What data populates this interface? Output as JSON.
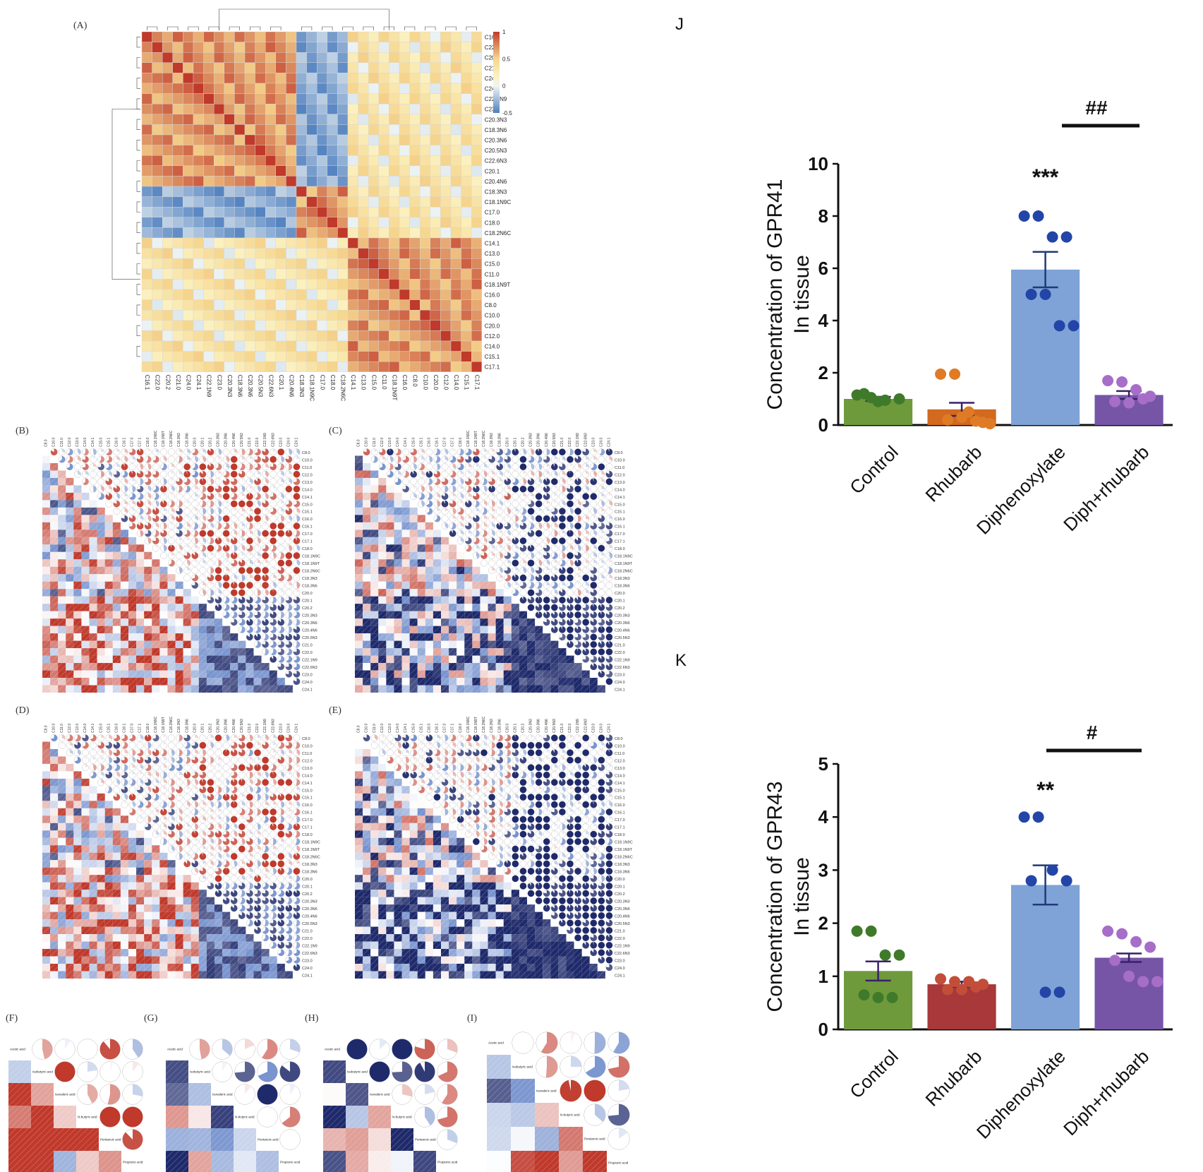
{
  "panel_labels": {
    "A": "(A)",
    "B": "(B)",
    "C": "(C)",
    "D": "(D)",
    "E": "(E)",
    "F": "(F)",
    "G": "(G)",
    "H": "(H)",
    "I": "(I)",
    "J": "J",
    "K": "K"
  },
  "colors": {
    "red": "#c0392b",
    "white": "#ffffff",
    "blue": "#3b63b8",
    "navy": "#1f2a6b",
    "control": "#6e9a3c",
    "rhubarb_j": "#d2691e",
    "rhubarb_k": "#a8383a",
    "diph": "#7fa3d6",
    "diphrhu": "#7655a6"
  },
  "chart_data": [
    {
      "type": "heatmap",
      "panel": "A",
      "row_labels": [
        "C16.1",
        "C22.0",
        "C20.2",
        "C21.0",
        "C24.0",
        "C24.1",
        "C22.1N9",
        "C23.0",
        "C20.3N3",
        "C18.3N6",
        "C20.3N6",
        "C20.5N3",
        "C22.6N3",
        "C20.1",
        "C20.4N6",
        "C18.3N3",
        "C18.1N9C",
        "C17.0",
        "C18.0",
        "C18.2N6C",
        "C14.1",
        "C13.0",
        "C15.0",
        "C11.0",
        "C18.1N9T",
        "C16.0",
        "C8.0",
        "C10.0",
        "C20.0",
        "C12.0",
        "C14.0",
        "C15.1",
        "C17.1"
      ],
      "col_labels": [
        "C16.1",
        "C22.0",
        "C20.2",
        "C21.0",
        "C24.0",
        "C24.1",
        "C22.1N9",
        "C23.0",
        "C20.3N3",
        "C18.3N6",
        "C20.3N6",
        "C20.5N3",
        "C22.6N3",
        "C20.1",
        "C20.4N6",
        "C18.3N3",
        "C18.1N9C",
        "C17.0",
        "C18.0",
        "C18.2N6C",
        "C14.1",
        "C13.0",
        "C15.0",
        "C11.0",
        "C18.1N9T",
        "C16.0",
        "C8.0",
        "C10.0",
        "C20.0",
        "C12.0",
        "C14.0",
        "C15.1",
        "C17.1"
      ],
      "groups": [
        [
          0,
          14
        ],
        [
          15,
          19
        ],
        [
          20,
          32
        ]
      ],
      "colorbar": {
        "ticks": [
          "1",
          "0.5",
          "0",
          "-0.5"
        ],
        "range": [
          -0.5,
          1
        ]
      }
    },
    {
      "type": "bar",
      "panel": "J",
      "categories": [
        "Control",
        "Rhubarb",
        "Diphenoxylate",
        "Diph+rhubarb"
      ],
      "values": [
        1.0,
        0.6,
        5.95,
        1.15
      ],
      "errors": [
        0.08,
        0.25,
        0.68,
        0.15
      ],
      "points": [
        [
          1.15,
          1.05,
          0.95,
          1.0,
          1.2,
          0.9
        ],
        [
          1.95,
          1.95,
          0.5,
          0.1,
          0.2,
          0.3,
          0.15,
          0.05
        ],
        [
          8.0,
          8.0,
          7.2,
          7.2,
          5.0,
          5.0,
          3.8,
          3.8
        ],
        [
          1.7,
          1.65,
          1.35,
          1.1,
          0.9,
          0.85,
          1.0
        ]
      ],
      "ylabel": "Concentration of GPR41 In tissue",
      "ylabel_lines": [
        "Concentration of GPR41",
        "In tissue"
      ],
      "yticks": [
        "0",
        "2",
        "4",
        "6",
        "8",
        "10"
      ],
      "ylim": [
        0,
        10
      ],
      "sig_bar": "***",
      "sig_line": "##"
    },
    {
      "type": "bar",
      "panel": "K",
      "categories": [
        "Control",
        "Rhubarb",
        "Diphenoxylate",
        "Diph+rhubarb"
      ],
      "values": [
        1.1,
        0.85,
        2.72,
        1.35
      ],
      "errors": [
        0.18,
        0.05,
        0.37,
        0.08
      ],
      "points": [
        [
          1.85,
          1.85,
          1.4,
          1.4,
          0.65,
          0.6,
          0.6
        ],
        [
          0.95,
          0.9,
          0.9,
          0.85,
          0.75,
          0.75,
          0.8
        ],
        [
          4.0,
          4.0,
          3.0,
          2.8,
          2.8,
          0.7,
          0.7
        ],
        [
          1.85,
          1.8,
          1.65,
          1.55,
          1.3,
          1.0,
          0.9,
          0.9
        ]
      ],
      "ylabel": "Concentration of GPR43 In tissue",
      "ylabel_lines": [
        "Concentration of GPR43",
        "In tissue"
      ],
      "yticks": [
        "0",
        "1",
        "2",
        "3",
        "4",
        "5"
      ],
      "ylim": [
        0,
        5
      ],
      "sig_bar": "**",
      "sig_line": "#"
    },
    {
      "type": "heatmap",
      "panels": [
        "B",
        "C",
        "D",
        "E"
      ],
      "labels": [
        "C8.0",
        "C10.0",
        "C11.0",
        "C12.0",
        "C13.0",
        "C14.0",
        "C14.1",
        "C15.0",
        "C15.1",
        "C16.0",
        "C16.1",
        "C17.0",
        "C17.1",
        "C18.0",
        "C18.1N9C",
        "C18.1N9T",
        "C18.2N6C",
        "C18.3N3",
        "C18.3N6",
        "C20.0",
        "C20.1",
        "C20.2",
        "C20.3N3",
        "C20.3N6",
        "C20.4N6",
        "C20.5N3",
        "C21.0",
        "C22.0",
        "C22.1N9",
        "C22.6N3",
        "C23.0",
        "C24.0",
        "C24.1"
      ]
    },
    {
      "type": "heatmap",
      "panels": [
        "F",
        "G",
        "H",
        "I"
      ],
      "labels": [
        "Acetic acid",
        "Isobutyric acid",
        "Isovaleric acid",
        "N-butyric acid",
        "Pentanoic acid",
        "Propionic acid"
      ]
    }
  ]
}
